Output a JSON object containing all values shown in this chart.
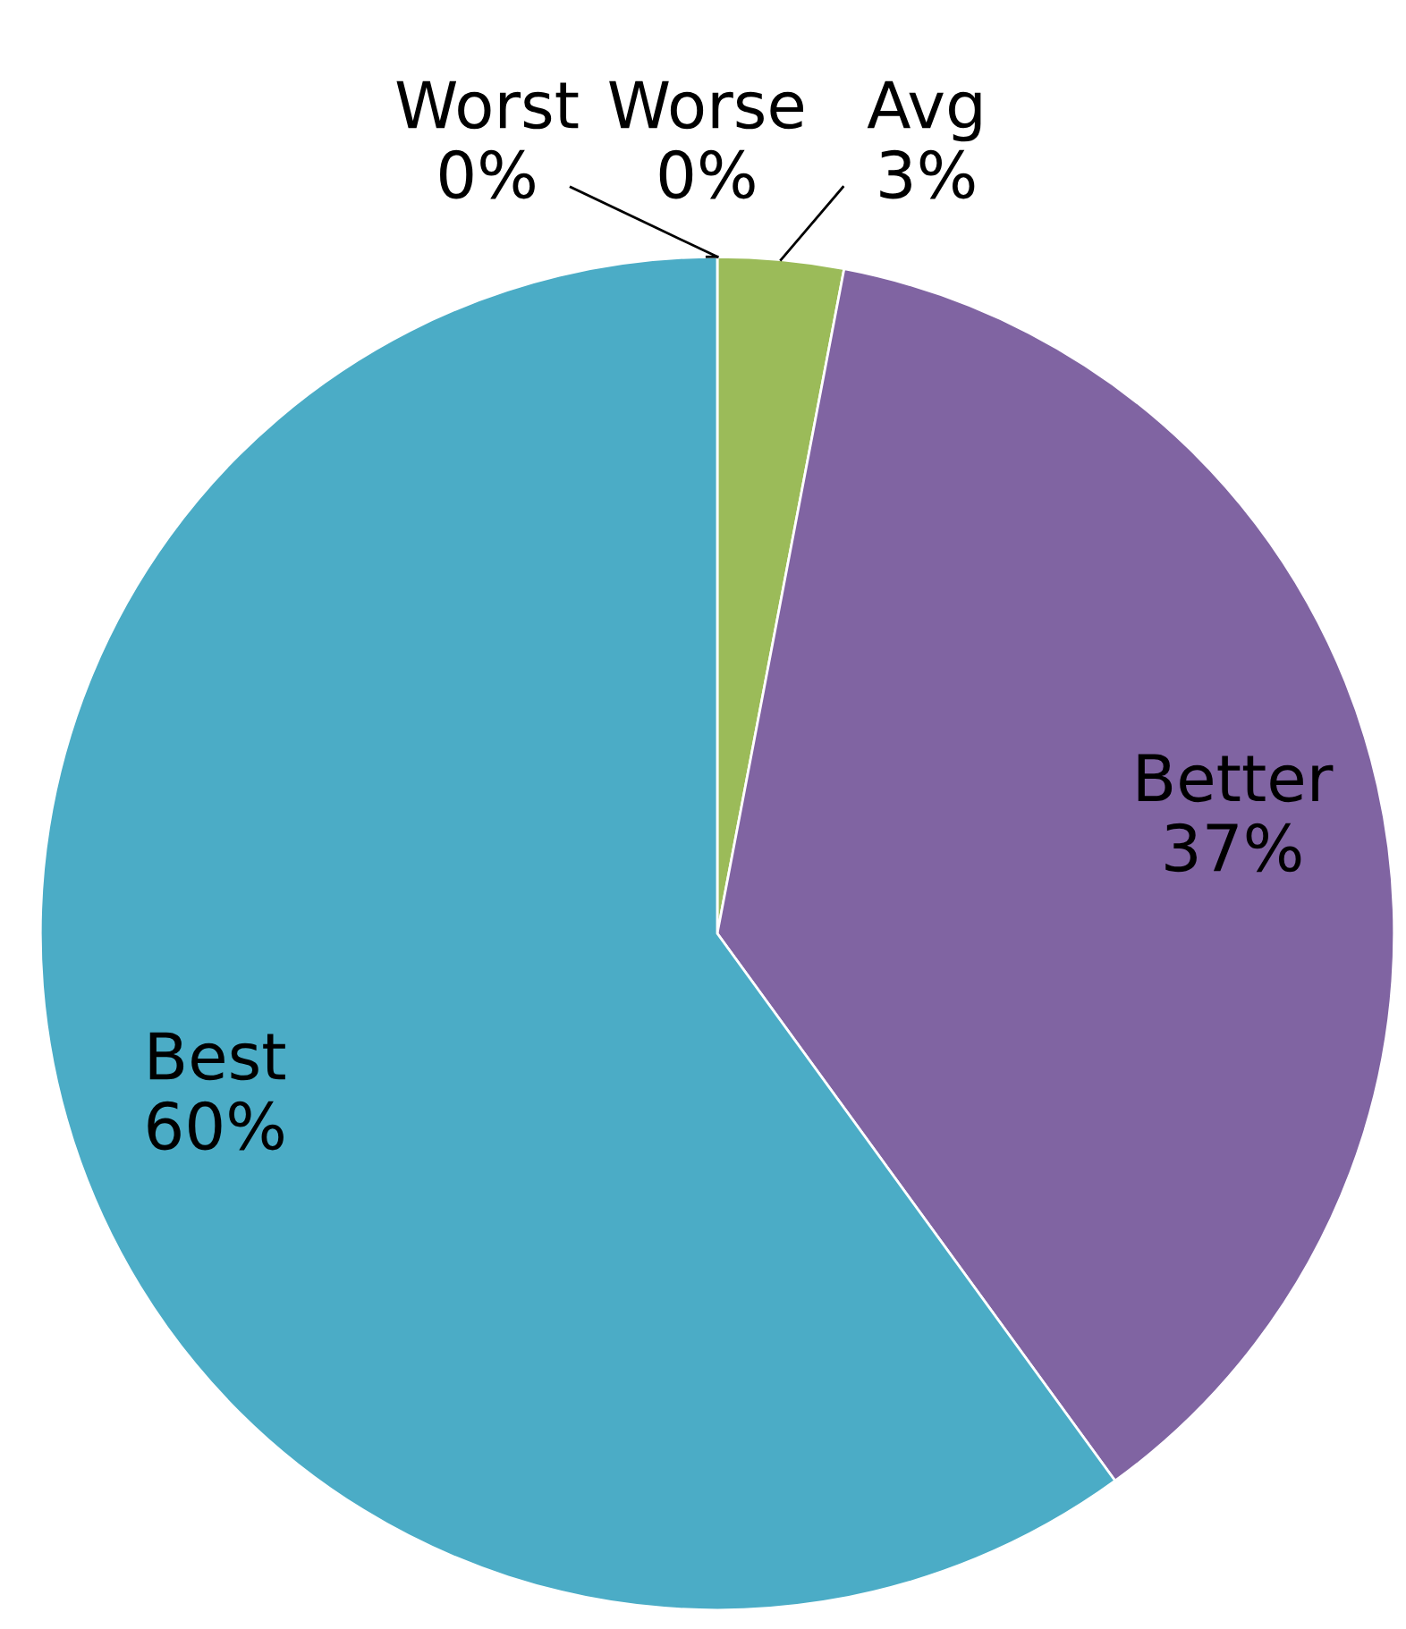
{
  "chart_data": {
    "type": "pie",
    "categories": [
      "Worst",
      "Worse",
      "Avg",
      "Better",
      "Best"
    ],
    "values": [
      0,
      0,
      3,
      37,
      60
    ],
    "colors": [
      "#4f81bd",
      "#c0504d",
      "#9bbb59",
      "#8064a2",
      "#4bacc6"
    ],
    "value_labels": [
      "0%",
      "0%",
      "3%",
      "37%",
      "60%"
    ]
  }
}
